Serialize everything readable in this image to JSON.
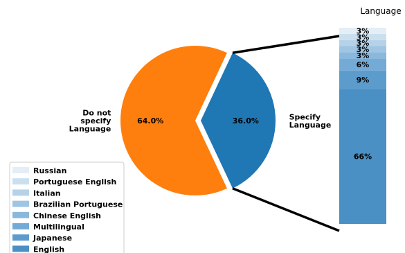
{
  "chart_data": [
    {
      "type": "pie",
      "slices": [
        {
          "label": "Do not\nspecify\nLanguage",
          "value": 64.0,
          "pct_label": "64.0%",
          "color": "#ff7f0e",
          "exploded": true
        },
        {
          "label": "Specify\nLanguage",
          "value": 36.0,
          "pct_label": "36.0%",
          "color": "#1f77b4",
          "exploded": false
        }
      ]
    },
    {
      "type": "bar",
      "stacked": true,
      "title": "Language",
      "series": [
        {
          "name": "English",
          "value": 66,
          "label": "66%",
          "color": "#4a90c4"
        },
        {
          "name": "Japanese",
          "value": 9,
          "label": "9%",
          "color": "#5c9ccd"
        },
        {
          "name": "Multilingual",
          "value": 6,
          "label": "6%",
          "color": "#74aad6"
        },
        {
          "name": "Chinese English",
          "value": 3,
          "label": "3%",
          "color": "#8ab8dc"
        },
        {
          "name": "Brazilian Portuguese",
          "value": 3,
          "label": "3%",
          "color": "#9fc5e2"
        },
        {
          "name": "Italian",
          "value": 3,
          "label": "3%",
          "color": "#b5d2e8"
        },
        {
          "name": "Portuguese English",
          "value": 3,
          "label": "3%",
          "color": "#cbe0ef"
        },
        {
          "name": "Russian",
          "value": 3,
          "label": "3%",
          "color": "#e3eef7"
        }
      ]
    }
  ]
}
